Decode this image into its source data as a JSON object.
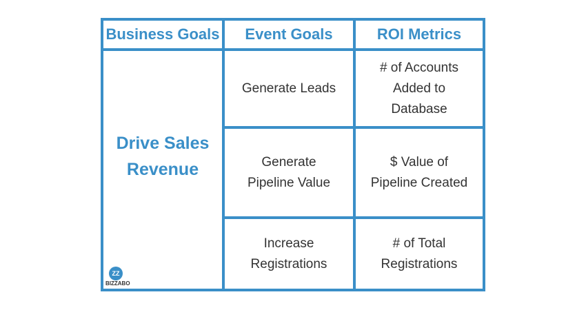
{
  "table": {
    "header": [
      "Business Goals",
      "Event Goals",
      "ROI Metrics"
    ],
    "business_goal": [
      "Drive Sales",
      "Revenue"
    ],
    "rows": [
      {
        "event_goal": [
          "Generate Leads"
        ],
        "roi_metric": [
          "# of Accounts",
          "Added to",
          "Database"
        ]
      },
      {
        "event_goal": [
          "Generate",
          "Pipeline Value"
        ],
        "roi_metric": [
          "$ Value of",
          "Pipeline Created"
        ]
      },
      {
        "event_goal": [
          "Increase",
          "Registrations"
        ],
        "roi_metric": [
          "# of Total",
          "Registrations"
        ]
      }
    ]
  },
  "logo": {
    "icon": "ZZ",
    "text": "BIZZABO"
  }
}
